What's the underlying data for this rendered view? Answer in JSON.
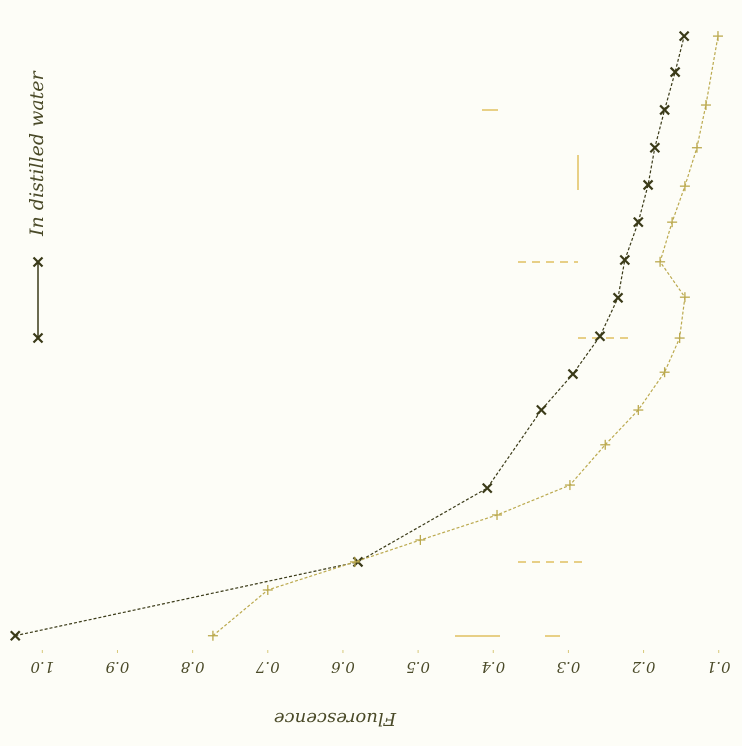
{
  "chart_data": {
    "type": "line",
    "x_label": "Fluorescence",
    "xlim": [
      1.043,
      0.085
    ],
    "xticks": [
      {
        "value": 1,
        "label": "1.0"
      },
      0.9,
      0.8,
      0.7,
      0.6,
      0.5,
      0.4,
      0.3,
      0.2,
      0.1
    ],
    "ylim": [
      0,
      100
    ],
    "legend": "left",
    "series": [
      {
        "name": "In distilled water",
        "color": "#3a3a18",
        "marker": "x",
        "x": [
          1.036,
          0.58,
          0.408,
          0.336,
          0.294,
          0.258,
          0.234,
          0.225,
          0.207,
          0.194,
          0.185,
          0.172,
          0.158,
          0.146
        ],
        "values": [
          0.7,
          12.8,
          24.9,
          37.7,
          43.6,
          49.8,
          56.1,
          62.3,
          68.5,
          74.6,
          80.7,
          86.9,
          93.1,
          99.0
        ]
      },
      {
        "color": "#bba94e",
        "marker": "+",
        "x": [
          0.773,
          0.7,
          0.584,
          0.497,
          0.395,
          0.298,
          0.251,
          0.207,
          0.172,
          0.152,
          0.145,
          0.178,
          0.162,
          0.145,
          0.129,
          0.117,
          0.101
        ],
        "values": [
          0.7,
          8.2,
          12.8,
          16.4,
          20.5,
          25.4,
          32.0,
          37.7,
          43.9,
          49.5,
          56.2,
          62.0,
          68.5,
          74.4,
          80.7,
          87.7,
          99.0
        ]
      }
    ]
  }
}
